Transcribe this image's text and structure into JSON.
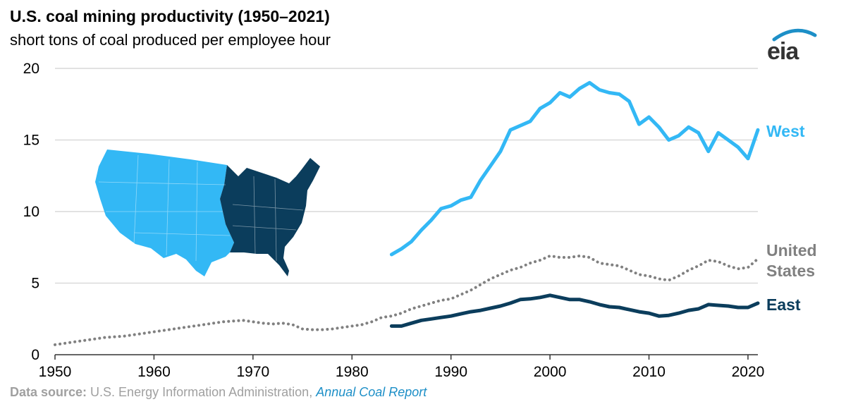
{
  "header": {
    "title": "U.S. coal mining productivity (1950–2021)",
    "subtitle": "short tons of coal produced per employee hour"
  },
  "logo": {
    "text": "eia"
  },
  "footer": {
    "source_label": "Data source:",
    "source_text": " U.S. Energy Information Administration, ",
    "source_report": "Annual Coal Report"
  },
  "colors": {
    "west": "#33b8f5",
    "us": "#808080",
    "east": "#0b3d5c",
    "grid": "#d9d9d9",
    "axis": "#333333"
  },
  "chart_data": {
    "type": "line",
    "title": "U.S. coal mining productivity (1950–2021)",
    "ylabel": "short tons of coal produced per employee hour",
    "xlim": [
      1950,
      2021
    ],
    "ylim": [
      0,
      20
    ],
    "xticks": [
      1950,
      1960,
      1970,
      1980,
      1990,
      2000,
      2010,
      2020
    ],
    "yticks": [
      0,
      5,
      10,
      15,
      20
    ],
    "series": [
      {
        "name": "West",
        "label_lines": [
          "West"
        ],
        "style": "solid",
        "x": [
          1984,
          1985,
          1986,
          1987,
          1988,
          1989,
          1990,
          1991,
          1992,
          1993,
          1994,
          1995,
          1996,
          1997,
          1998,
          1999,
          2000,
          2001,
          2002,
          2003,
          2004,
          2005,
          2006,
          2007,
          2008,
          2009,
          2010,
          2011,
          2012,
          2013,
          2014,
          2015,
          2016,
          2017,
          2018,
          2019,
          2020,
          2021
        ],
        "values": [
          7.0,
          7.4,
          7.9,
          8.7,
          9.4,
          10.2,
          10.4,
          10.8,
          11.0,
          12.2,
          13.2,
          14.2,
          15.7,
          16.0,
          16.3,
          17.2,
          17.6,
          18.3,
          18.0,
          18.6,
          19.0,
          18.5,
          18.3,
          18.2,
          17.7,
          16.1,
          16.6,
          15.9,
          15.0,
          15.3,
          15.9,
          15.5,
          14.2,
          15.5,
          15.0,
          14.5,
          13.7,
          15.7
        ]
      },
      {
        "name": "United States",
        "label_lines": [
          "United",
          "States"
        ],
        "style": "dotted",
        "x": [
          1950,
          1951,
          1952,
          1953,
          1954,
          1955,
          1956,
          1957,
          1958,
          1959,
          1960,
          1961,
          1962,
          1963,
          1964,
          1965,
          1966,
          1967,
          1968,
          1969,
          1970,
          1971,
          1972,
          1973,
          1974,
          1975,
          1976,
          1977,
          1978,
          1979,
          1980,
          1981,
          1982,
          1983,
          1984,
          1985,
          1986,
          1987,
          1988,
          1989,
          1990,
          1991,
          1992,
          1993,
          1994,
          1995,
          1996,
          1997,
          1998,
          1999,
          2000,
          2001,
          2002,
          2003,
          2004,
          2005,
          2006,
          2007,
          2008,
          2009,
          2010,
          2011,
          2012,
          2013,
          2014,
          2015,
          2016,
          2017,
          2018,
          2019,
          2020,
          2021
        ],
        "values": [
          0.7,
          0.8,
          0.9,
          1.0,
          1.1,
          1.2,
          1.25,
          1.3,
          1.4,
          1.5,
          1.6,
          1.7,
          1.8,
          1.9,
          2.0,
          2.1,
          2.2,
          2.3,
          2.35,
          2.4,
          2.3,
          2.2,
          2.15,
          2.2,
          2.1,
          1.8,
          1.75,
          1.75,
          1.8,
          1.9,
          2.0,
          2.1,
          2.3,
          2.6,
          2.7,
          2.9,
          3.2,
          3.4,
          3.6,
          3.8,
          3.9,
          4.2,
          4.5,
          4.9,
          5.3,
          5.6,
          5.9,
          6.1,
          6.4,
          6.6,
          6.9,
          6.8,
          6.8,
          6.9,
          6.8,
          6.4,
          6.3,
          6.2,
          5.9,
          5.6,
          5.5,
          5.3,
          5.2,
          5.5,
          5.9,
          6.2,
          6.6,
          6.5,
          6.2,
          6.0,
          6.1,
          6.7
        ]
      },
      {
        "name": "East",
        "label_lines": [
          "East"
        ],
        "style": "solid",
        "x": [
          1984,
          1985,
          1986,
          1987,
          1988,
          1989,
          1990,
          1991,
          1992,
          1993,
          1994,
          1995,
          1996,
          1997,
          1998,
          1999,
          2000,
          2001,
          2002,
          2003,
          2004,
          2005,
          2006,
          2007,
          2008,
          2009,
          2010,
          2011,
          2012,
          2013,
          2014,
          2015,
          2016,
          2017,
          2018,
          2019,
          2020,
          2021
        ],
        "values": [
          2.0,
          2.0,
          2.2,
          2.4,
          2.5,
          2.6,
          2.7,
          2.85,
          3.0,
          3.1,
          3.25,
          3.4,
          3.6,
          3.85,
          3.9,
          4.0,
          4.15,
          4.0,
          3.85,
          3.85,
          3.7,
          3.5,
          3.35,
          3.3,
          3.15,
          3.0,
          2.9,
          2.7,
          2.75,
          2.9,
          3.1,
          3.2,
          3.5,
          3.45,
          3.4,
          3.3,
          3.3,
          3.6
        ]
      }
    ]
  }
}
